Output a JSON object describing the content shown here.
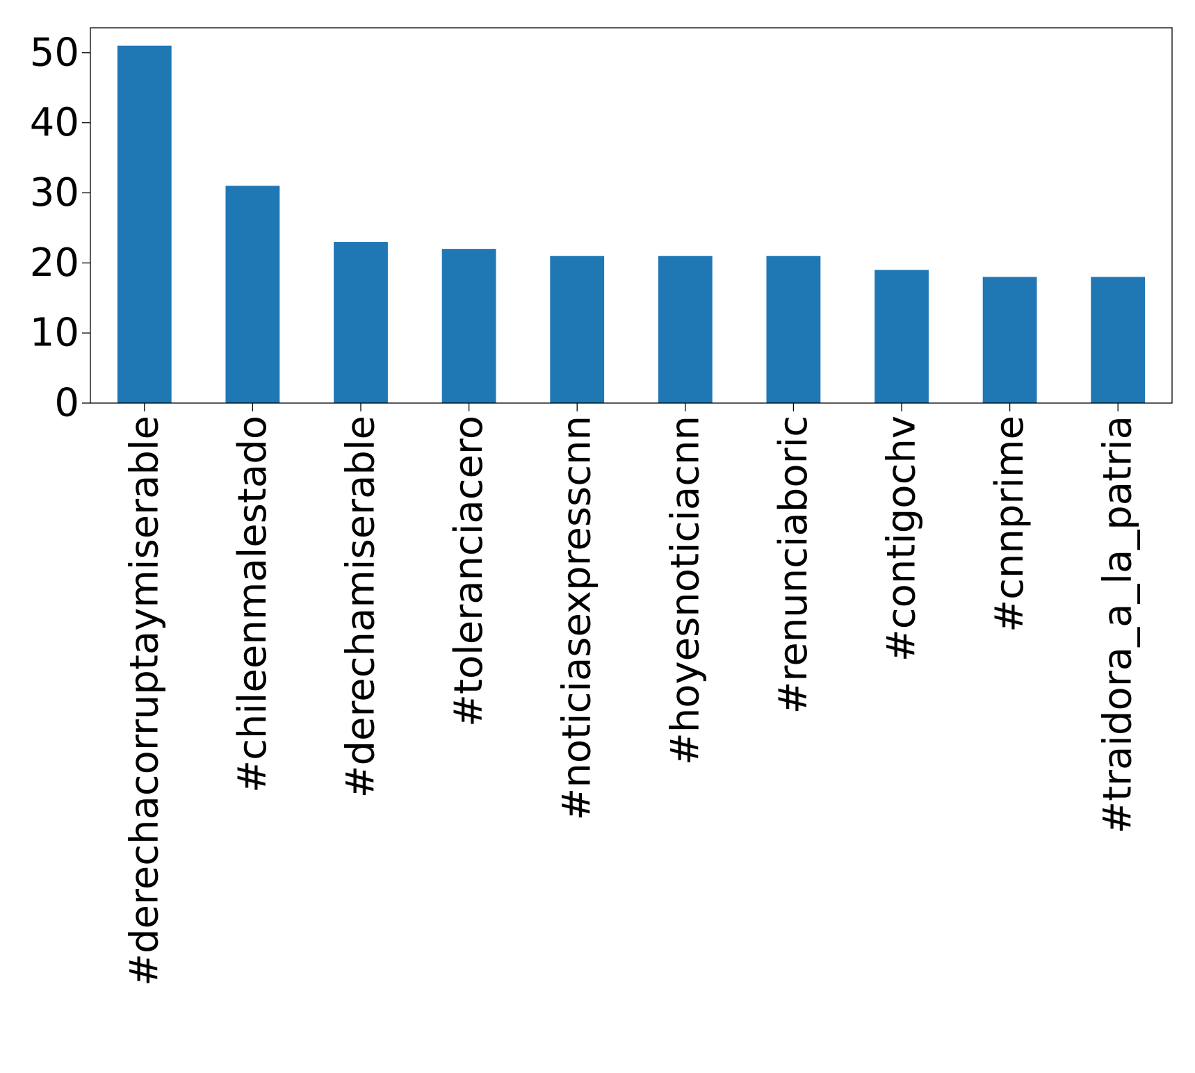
{
  "chart_data": {
    "type": "bar",
    "title": "",
    "xlabel": "",
    "ylabel": "",
    "categories": [
      "#derechacorruptaymiserable",
      "#chileenmalestado",
      "#derechamiserable",
      "#toleranciacero",
      "#noticiasexpresscnn",
      "#hoyesnoticiacnn",
      "#renunciaboric",
      "#contigochv",
      "#cnnprime",
      "#traidora_a_la_patria"
    ],
    "values": [
      51,
      31,
      23,
      22,
      21,
      21,
      21,
      19,
      18,
      18
    ],
    "ylim": [
      0,
      53.55
    ],
    "yticks": [
      "0",
      "10",
      "20",
      "30",
      "40",
      "50"
    ],
    "grid": false,
    "legend": "none",
    "bar_color": "#1f77b4",
    "axis_color": "#000000"
  }
}
